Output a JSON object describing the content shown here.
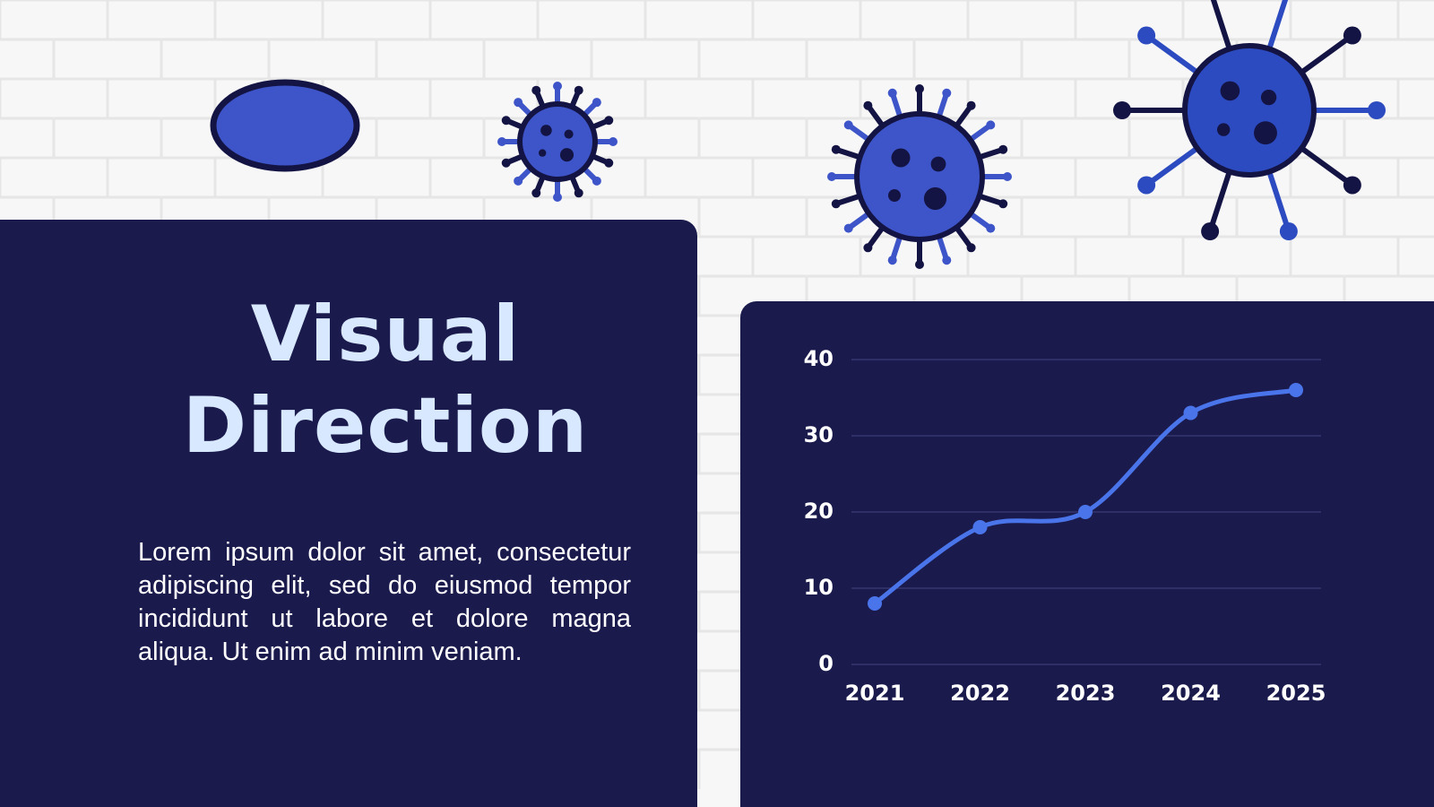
{
  "slide": {
    "title": "Visual Direction",
    "body": "Lorem ipsum dolor sit amet, consectetur adipiscing elit, sed do eiusmod tempor incididunt ut labore et dolore magna aliqua. Ut enim ad minim veniam."
  },
  "chart_data": {
    "type": "line",
    "categories": [
      "2021",
      "2022",
      "2023",
      "2024",
      "2025"
    ],
    "values": [
      8,
      18,
      20,
      33,
      36
    ],
    "color": "#4a74ea",
    "ylim": [
      0,
      40
    ],
    "yticks": [
      0,
      10,
      20,
      30,
      40
    ],
    "grid": true
  }
}
